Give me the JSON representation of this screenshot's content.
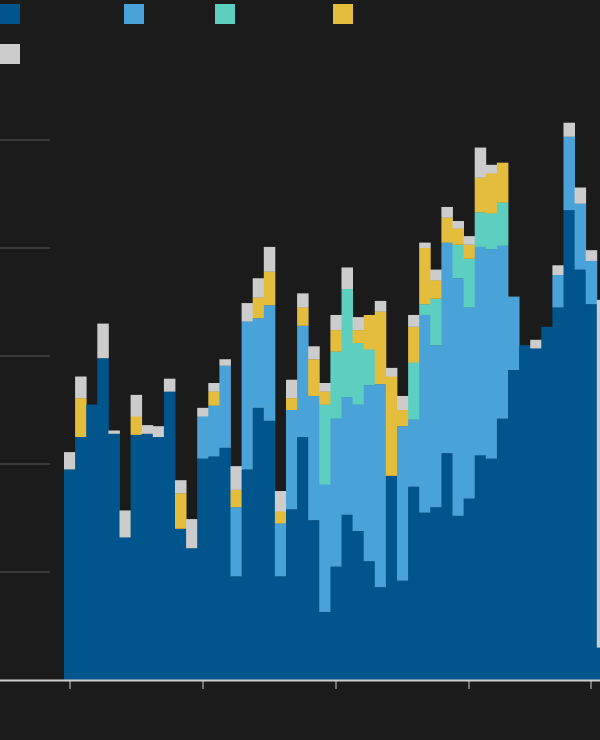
{
  "chart_data": {
    "type": "bar",
    "stacked": true,
    "title": "",
    "xlabel": "",
    "ylabel": "",
    "ylim": [
      0,
      5
    ],
    "grid": true,
    "legend": "top-left",
    "colors": {
      "series_1": "#00558c",
      "series_2": "#4aa3d8",
      "series_3": "#5dcfc0",
      "series_4": "#e5bd3c",
      "series_5": "#cccccc",
      "background": "#1b1b1b",
      "grid": "#555555",
      "axis": "#cfcfcf"
    },
    "series": [
      {
        "values": [
          1.95,
          2.25,
          2.55,
          2.98,
          2.28,
          1.32,
          2.27,
          2.28,
          2.25,
          2.67,
          1.4,
          1.22,
          2.05,
          2.07,
          2.15,
          0.96,
          1.95,
          2.52,
          2.4,
          0.96,
          1.58,
          2.25,
          1.48,
          0.63,
          1.05,
          1.53,
          1.38,
          1.1,
          0.86,
          1.89,
          0.92,
          1.79,
          1.55,
          1.6,
          2.1,
          1.52,
          1.68,
          2.08,
          2.05,
          2.42,
          2.87,
          3.1,
          3.07,
          3.27,
          3.45,
          4.35,
          3.8,
          3.48,
          0.3
        ]
      },
      {
        "values": [
          0,
          0,
          0,
          0,
          0,
          0,
          0,
          0,
          0,
          0,
          0,
          0,
          0.39,
          0.47,
          0.76,
          0.64,
          1.37,
          0.83,
          1.07,
          0.49,
          0.92,
          1.03,
          1.15,
          1.18,
          1.37,
          1.09,
          1.17,
          1.63,
          1.88,
          0,
          1.43,
          0.62,
          1.83,
          1.5,
          1.95,
          2.2,
          1.77,
          1.93,
          1.94,
          1.6,
          0.68,
          0,
          0,
          0,
          0.3,
          0.68,
          0.61,
          0.4,
          0
        ]
      },
      {
        "values": [
          0,
          0,
          0,
          0,
          0,
          0,
          0,
          0,
          0,
          0,
          0,
          0,
          0,
          0,
          0,
          0,
          0,
          0,
          0,
          0,
          0,
          0,
          0,
          0.74,
          0.62,
          1.0,
          0.57,
          0.33,
          0,
          0,
          0,
          0.53,
          0.1,
          0.43,
          0,
          0.31,
          0.45,
          0.32,
          0.33,
          0.4,
          0,
          0,
          0,
          0,
          0,
          0,
          0,
          0,
          0
        ]
      },
      {
        "values": [
          0,
          0.36,
          0,
          0,
          0,
          0,
          0.17,
          0,
          0,
          0,
          0.33,
          0,
          0,
          0.13,
          0,
          0.16,
          0,
          0.19,
          0.31,
          0.11,
          0.11,
          0.17,
          0.34,
          0.12,
          0.2,
          0,
          0.12,
          0.32,
          0.67,
          0.92,
          0.15,
          0.33,
          0.52,
          0.17,
          0.23,
          0.15,
          0.13,
          0.32,
          0.37,
          0.37,
          0,
          0,
          0,
          0,
          0,
          0,
          0,
          0,
          0
        ]
      },
      {
        "values": [
          0.16,
          0.2,
          0,
          0.32,
          0.03,
          0.25,
          0.2,
          0.08,
          0.1,
          0.12,
          0.12,
          0.27,
          0.08,
          0.08,
          0.06,
          0.22,
          0.17,
          0.18,
          0.23,
          0.19,
          0.17,
          0.13,
          0.12,
          0.08,
          0.14,
          0.2,
          0.12,
          0,
          0.1,
          0.08,
          0.13,
          0.11,
          0.05,
          0.1,
          0.1,
          0.07,
          0.08,
          0.28,
          0.08,
          0,
          0,
          0,
          0.08,
          0,
          0.09,
          0.13,
          0.15,
          0.1,
          3.22
        ]
      }
    ],
    "categories": [
      "",
      "",
      "",
      "",
      "",
      "",
      "",
      "",
      "",
      "",
      "",
      "",
      "",
      "",
      "",
      "",
      "",
      "",
      "",
      "",
      "",
      "",
      "",
      "",
      "",
      "",
      "",
      "",
      "",
      "",
      "",
      "",
      "",
      "",
      "",
      "",
      "",
      "",
      "",
      "",
      "",
      "",
      "",
      "",
      "",
      "",
      "",
      "",
      ""
    ]
  }
}
